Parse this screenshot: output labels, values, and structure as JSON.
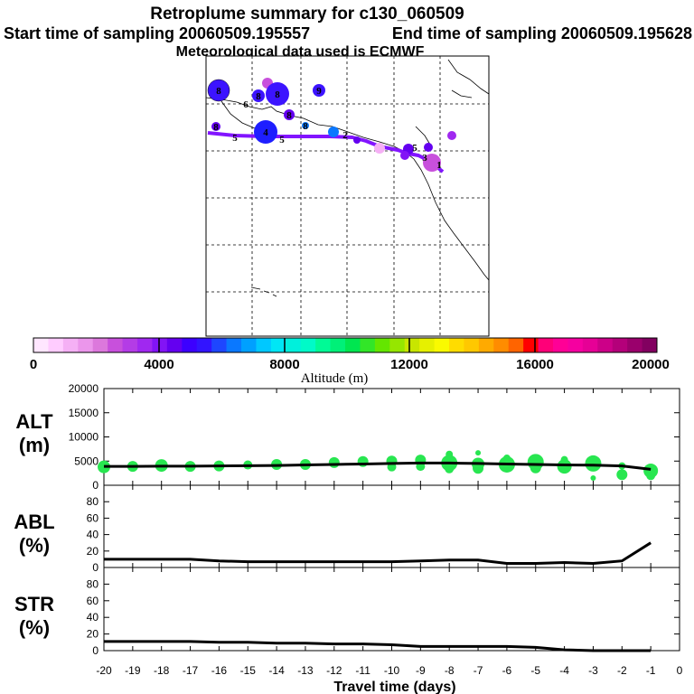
{
  "header": {
    "title": "Retroplume summary for c130_060509",
    "start_text": "Start time of sampling 20060509.195557",
    "end_text": "End time of sampling 20060509.195628",
    "met_text": "Meteorological data used is ECMWF"
  },
  "colorbar": {
    "label": "Altitude (m)",
    "tick_labels": [
      "0",
      "4000",
      "8000",
      "12000",
      "16000",
      "20000"
    ],
    "colors": [
      "#ffe6ff",
      "#ffccff",
      "#f5b0f5",
      "#eb96eb",
      "#dc78dc",
      "#c850dc",
      "#b43ce6",
      "#a028f0",
      "#8214f5",
      "#6400f0",
      "#3c00ff",
      "#3214ff",
      "#1e46ff",
      "#0a78ff",
      "#00a0ff",
      "#00c8ff",
      "#00e6f5",
      "#00f0dc",
      "#00fac8",
      "#00fa96",
      "#00f078",
      "#00e650",
      "#32e628",
      "#64e600",
      "#96e600",
      "#c8e600",
      "#e6f000",
      "#fafa00",
      "#ffdc00",
      "#ffc800",
      "#ffaa00",
      "#ff8c00",
      "#ff6400",
      "#ff0000",
      "#ff0078",
      "#ff0096",
      "#f500a0",
      "#e60096",
      "#cc0088",
      "#b4007a",
      "#9a006c",
      "#820060"
    ]
  },
  "map": {
    "track_color": "#8214ff",
    "labels": [
      "8",
      "8",
      "8",
      "6",
      "9",
      "8",
      "8",
      "4",
      "5",
      "8",
      "5",
      "2",
      "5",
      "3",
      "1"
    ]
  },
  "chart_data": [
    {
      "type": "scatter",
      "name": "ALT",
      "ylabel": "ALT (m)",
      "ylabel_lines": [
        "ALT",
        "(m)"
      ],
      "ylim": [
        0,
        20000
      ],
      "yticks": [
        0,
        5000,
        10000,
        15000,
        20000
      ],
      "xlim": [
        -20,
        0
      ],
      "line": {
        "x": [
          -20,
          -19,
          -18,
          -17,
          -16,
          -15,
          -14,
          -13,
          -12,
          -11,
          -10,
          -9,
          -8,
          -7,
          -6,
          -5,
          -4,
          -3,
          -2,
          -1
        ],
        "y": [
          3900,
          3900,
          3950,
          3950,
          4000,
          4050,
          4100,
          4200,
          4300,
          4400,
          4500,
          4600,
          4600,
          4500,
          4400,
          4300,
          4200,
          4150,
          4000,
          3300
        ]
      },
      "points": [
        {
          "x": -20,
          "y": 3800,
          "s": 7
        },
        {
          "x": -19,
          "y": 3900,
          "s": 6
        },
        {
          "x": -18,
          "y": 4100,
          "s": 7
        },
        {
          "x": -17,
          "y": 3900,
          "s": 6
        },
        {
          "x": -16,
          "y": 4000,
          "s": 6
        },
        {
          "x": -15,
          "y": 4200,
          "s": 5
        },
        {
          "x": -14,
          "y": 4300,
          "s": 6
        },
        {
          "x": -13,
          "y": 4300,
          "s": 6
        },
        {
          "x": -12,
          "y": 4700,
          "s": 6
        },
        {
          "x": -11,
          "y": 4900,
          "s": 6
        },
        {
          "x": -10,
          "y": 5000,
          "s": 6
        },
        {
          "x": -10,
          "y": 3800,
          "s": 5
        },
        {
          "x": -9,
          "y": 5200,
          "s": 6
        },
        {
          "x": -9,
          "y": 3900,
          "s": 5
        },
        {
          "x": -8,
          "y": 4600,
          "s": 9
        },
        {
          "x": -8,
          "y": 6400,
          "s": 4
        },
        {
          "x": -8,
          "y": 3400,
          "s": 5
        },
        {
          "x": -7,
          "y": 4400,
          "s": 7
        },
        {
          "x": -7,
          "y": 6700,
          "s": 3
        },
        {
          "x": -7,
          "y": 3500,
          "s": 6
        },
        {
          "x": -6,
          "y": 4300,
          "s": 9
        },
        {
          "x": -6,
          "y": 5600,
          "s": 4
        },
        {
          "x": -5,
          "y": 4800,
          "s": 9
        },
        {
          "x": -5,
          "y": 3600,
          "s": 6
        },
        {
          "x": -4,
          "y": 3900,
          "s": 8
        },
        {
          "x": -4,
          "y": 5300,
          "s": 4
        },
        {
          "x": -3,
          "y": 4500,
          "s": 9
        },
        {
          "x": -3,
          "y": 1500,
          "s": 3
        },
        {
          "x": -2,
          "y": 4000,
          "s": 4
        },
        {
          "x": -2,
          "y": 2200,
          "s": 6
        },
        {
          "x": -1,
          "y": 3000,
          "s": 8
        },
        {
          "x": -1,
          "y": 2000,
          "s": 5
        }
      ],
      "color": "#28e650"
    },
    {
      "type": "line",
      "name": "ABL",
      "ylabel": "ABL (%)",
      "ylabel_lines": [
        "ABL",
        "(%)"
      ],
      "ylim": [
        0,
        100
      ],
      "yticks": [
        0,
        20,
        40,
        60,
        80
      ],
      "xlim": [
        -20,
        0
      ],
      "x": [
        -20,
        -19,
        -18,
        -17,
        -16,
        -15,
        -14,
        -13,
        -12,
        -11,
        -10,
        -9,
        -8,
        -7,
        -6,
        -5,
        -4,
        -3,
        -2,
        -1
      ],
      "y": [
        10,
        10,
        10,
        10,
        8,
        7,
        7,
        7,
        7,
        7,
        7,
        8,
        9,
        9,
        5,
        5,
        6,
        5,
        8,
        30
      ]
    },
    {
      "type": "line",
      "name": "STR",
      "ylabel": "STR (%)",
      "ylabel_lines": [
        "STR",
        "(%)"
      ],
      "ylim": [
        0,
        100
      ],
      "yticks": [
        0,
        20,
        40,
        60,
        80
      ],
      "xlim": [
        -20,
        0
      ],
      "xlabel": "Travel time (days)",
      "xtick_labels": [
        "-20",
        "-19",
        "-18",
        "-17",
        "-16",
        "-15",
        "-14",
        "-13",
        "-12",
        "-11",
        "-10",
        "-9",
        "-8",
        "-7",
        "-6",
        "-5",
        "-4",
        "-3",
        "-2",
        "-1",
        "0"
      ],
      "x": [
        -20,
        -19,
        -18,
        -17,
        -16,
        -15,
        -14,
        -13,
        -12,
        -11,
        -10,
        -9,
        -8,
        -7,
        -6,
        -5,
        -4,
        -3,
        -2,
        -1
      ],
      "y": [
        11,
        11,
        11,
        11,
        10,
        10,
        9,
        9,
        8,
        8,
        7,
        5,
        5,
        5,
        5,
        4,
        1,
        0,
        0,
        0
      ]
    }
  ]
}
